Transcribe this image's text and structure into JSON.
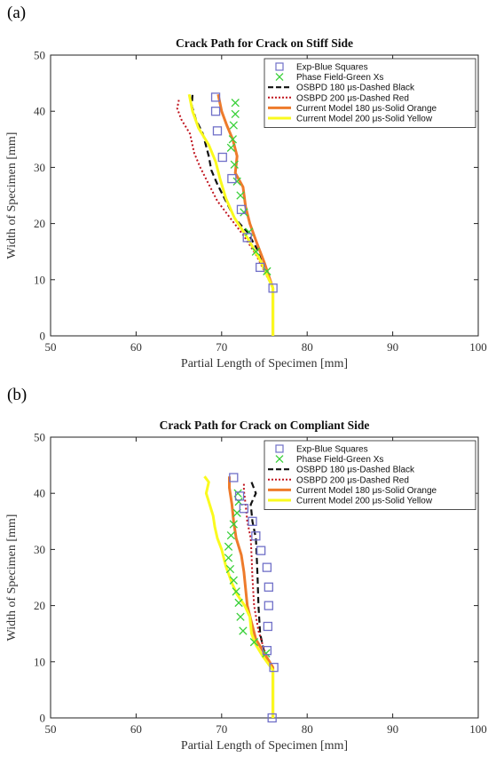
{
  "chart_data": [
    {
      "type": "line",
      "panel_label": "(a)",
      "title": "Crack Path for Crack on Stiff Side",
      "xlabel": "Partial Length of Specimen [mm]",
      "ylabel": "Width of Specimen [mm]",
      "xlim": [
        50,
        100
      ],
      "ylim": [
        0,
        50
      ],
      "xticks": [
        50,
        60,
        70,
        80,
        90,
        100
      ],
      "yticks": [
        0,
        10,
        20,
        30,
        40,
        50
      ],
      "legend_position": "top-right",
      "series": [
        {
          "name": "Exp-Blue Squares",
          "style": "square",
          "color": "#7070c8",
          "points": [
            [
              76.0,
              8.5
            ],
            [
              74.5,
              12.2
            ],
            [
              73.0,
              17.5
            ],
            [
              72.3,
              22.5
            ],
            [
              71.2,
              28.0
            ],
            [
              70.1,
              31.8
            ],
            [
              69.5,
              36.5
            ],
            [
              69.3,
              40.0
            ],
            [
              69.3,
              42.5
            ]
          ]
        },
        {
          "name": "Phase Field-Green Xs",
          "style": "x",
          "color": "#39d039",
          "points": [
            [
              75.3,
              11.5
            ],
            [
              74.0,
              15.0
            ],
            [
              73.2,
              18.5
            ],
            [
              72.6,
              22.0
            ],
            [
              72.2,
              25.0
            ],
            [
              71.8,
              27.5
            ],
            [
              71.5,
              30.5
            ],
            [
              71.1,
              33.5
            ],
            [
              71.3,
              35.0
            ],
            [
              71.4,
              37.5
            ],
            [
              71.6,
              39.5
            ],
            [
              71.6,
              41.5
            ]
          ]
        },
        {
          "name": "OSBPD 180 μs-Dashed Black",
          "style": "dashed",
          "color": "#111111",
          "points": [
            [
              76.0,
              0
            ],
            [
              76.0,
              8.5
            ],
            [
              74.5,
              14.5
            ],
            [
              73.0,
              18.5
            ],
            [
              71.5,
              21.0
            ],
            [
              70.5,
              24.0
            ],
            [
              69.5,
              27.0
            ],
            [
              68.8,
              29.5
            ],
            [
              68.5,
              32.0
            ],
            [
              67.8,
              36.0
            ],
            [
              67.0,
              38.5
            ],
            [
              66.5,
              41.0
            ],
            [
              66.6,
              43.0
            ]
          ]
        },
        {
          "name": "OSBPD 200 μs-Dashed Red",
          "style": "dotted",
          "color": "#c0141e",
          "points": [
            [
              76.0,
              0
            ],
            [
              76.0,
              8.5
            ],
            [
              74.0,
              14.5
            ],
            [
              72.5,
              18.0
            ],
            [
              71.0,
              21.0
            ],
            [
              69.5,
              24.0
            ],
            [
              68.5,
              27.0
            ],
            [
              67.5,
              30.0
            ],
            [
              66.8,
              32.5
            ],
            [
              66.3,
              36.0
            ],
            [
              65.3,
              38.5
            ],
            [
              64.8,
              40.5
            ],
            [
              65.0,
              42.0
            ]
          ]
        },
        {
          "name": "Current Model 180 μs-Solid Orange",
          "style": "solid",
          "color": "#ee7b2b",
          "points": [
            [
              76.0,
              0
            ],
            [
              76.0,
              8.5
            ],
            [
              75.0,
              13.0
            ],
            [
              74.0,
              17.0
            ],
            [
              73.3,
              20.0
            ],
            [
              72.8,
              23.0
            ],
            [
              72.5,
              26.5
            ],
            [
              71.6,
              29.0
            ],
            [
              71.8,
              32.0
            ],
            [
              71.3,
              35.0
            ],
            [
              70.6,
              37.5
            ],
            [
              70.0,
              40.0
            ],
            [
              69.6,
              43.0
            ]
          ]
        },
        {
          "name": "Current Model 200 μs-Solid Yellow",
          "style": "solid",
          "color": "#fafa1e",
          "points": [
            [
              76.0,
              0
            ],
            [
              76.0,
              8.5
            ],
            [
              74.5,
              13.5
            ],
            [
              73.0,
              17.5
            ],
            [
              71.5,
              21.0
            ],
            [
              70.5,
              24.5
            ],
            [
              69.8,
              28.0
            ],
            [
              69.3,
              31.0
            ],
            [
              68.5,
              34.0
            ],
            [
              67.3,
              37.0
            ],
            [
              66.6,
              40.0
            ],
            [
              66.2,
              43.0
            ]
          ]
        }
      ]
    },
    {
      "type": "line",
      "panel_label": "(b)",
      "title": "Crack Path for Crack on Compliant Side",
      "xlabel": "Partial Length of Specimen [mm]",
      "ylabel": "Width of Specimen [mm]",
      "xlim": [
        50,
        100
      ],
      "ylim": [
        0,
        50
      ],
      "xticks": [
        50,
        60,
        70,
        80,
        90,
        100
      ],
      "yticks": [
        0,
        10,
        20,
        30,
        40,
        50
      ],
      "legend_position": "top-right",
      "series": [
        {
          "name": "Exp-Blue Squares",
          "style": "square",
          "color": "#7070c8",
          "points": [
            [
              75.9,
              0
            ],
            [
              76.1,
              9.0
            ],
            [
              75.3,
              12.0
            ],
            [
              75.4,
              16.3
            ],
            [
              75.5,
              20.0
            ],
            [
              75.5,
              23.3
            ],
            [
              75.3,
              26.8
            ],
            [
              74.6,
              29.8
            ],
            [
              74.0,
              32.4
            ],
            [
              73.6,
              35.0
            ],
            [
              72.6,
              37.3
            ],
            [
              72.1,
              39.5
            ],
            [
              71.4,
              42.8
            ]
          ]
        },
        {
          "name": "Phase Field-Green Xs",
          "style": "x",
          "color": "#39d039",
          "points": [
            [
              75.2,
              11.5
            ],
            [
              73.8,
              13.5
            ],
            [
              72.5,
              15.5
            ],
            [
              72.2,
              18.0
            ],
            [
              72.0,
              20.5
            ],
            [
              71.7,
              22.5
            ],
            [
              71.4,
              24.5
            ],
            [
              71.0,
              26.5
            ],
            [
              70.8,
              28.5
            ],
            [
              70.8,
              30.5
            ],
            [
              71.1,
              32.5
            ],
            [
              71.4,
              34.5
            ],
            [
              71.8,
              36.5
            ],
            [
              72.0,
              38.5
            ],
            [
              71.9,
              40.0
            ]
          ]
        },
        {
          "name": "OSBPD 180 μs-Dashed Black",
          "style": "dashed",
          "color": "#111111",
          "points": [
            [
              76.0,
              0
            ],
            [
              76.0,
              8.5
            ],
            [
              75.0,
              11.5
            ],
            [
              74.5,
              15.0
            ],
            [
              74.3,
              20.0
            ],
            [
              74.2,
              25.0
            ],
            [
              74.1,
              29.0
            ],
            [
              74.0,
              32.0
            ],
            [
              73.6,
              35.0
            ],
            [
              73.4,
              38.0
            ],
            [
              74.0,
              40.0
            ],
            [
              73.5,
              42.0
            ]
          ]
        },
        {
          "name": "OSBPD 200 μs-Dashed Red",
          "style": "dotted",
          "color": "#c0141e",
          "points": [
            [
              76.0,
              0
            ],
            [
              76.0,
              8.5
            ],
            [
              75.0,
              12.0
            ],
            [
              74.3,
              15.5
            ],
            [
              73.8,
              20.0
            ],
            [
              73.6,
              25.0
            ],
            [
              73.5,
              29.0
            ],
            [
              73.4,
              32.0
            ],
            [
              73.0,
              35.0
            ],
            [
              72.8,
              38.0
            ],
            [
              72.6,
              40.5
            ],
            [
              72.6,
              42.0
            ]
          ]
        },
        {
          "name": "Current Model 180 μs-Solid Orange",
          "style": "solid",
          "color": "#ee7b2b",
          "points": [
            [
              76.0,
              0
            ],
            [
              76.0,
              9.0
            ],
            [
              75.0,
              11.5
            ],
            [
              74.0,
              14.0
            ],
            [
              73.5,
              17.0
            ],
            [
              73.0,
              20.0
            ],
            [
              72.8,
              23.0
            ],
            [
              72.6,
              26.0
            ],
            [
              72.3,
              29.0
            ],
            [
              71.7,
              32.0
            ],
            [
              71.4,
              35.0
            ],
            [
              71.2,
              38.0
            ],
            [
              70.9,
              41.0
            ],
            [
              70.9,
              43.0
            ]
          ]
        },
        {
          "name": "Current Model 200 μs-Solid Yellow",
          "style": "solid",
          "color": "#fafa1e",
          "points": [
            [
              76.0,
              0
            ],
            [
              76.0,
              8.5
            ],
            [
              74.8,
              11.0
            ],
            [
              74.0,
              13.0
            ],
            [
              73.5,
              15.0
            ],
            [
              73.3,
              18.0
            ],
            [
              72.7,
              20.0
            ],
            [
              71.8,
              22.0
            ],
            [
              71.2,
              24.0
            ],
            [
              70.5,
              27.0
            ],
            [
              70.0,
              30.0
            ],
            [
              69.5,
              32.0
            ],
            [
              69.2,
              34.0
            ],
            [
              69.0,
              36.0
            ],
            [
              68.6,
              38.0
            ],
            [
              68.2,
              40.0
            ],
            [
              68.5,
              42.0
            ],
            [
              68.0,
              43.0
            ]
          ]
        }
      ]
    }
  ]
}
